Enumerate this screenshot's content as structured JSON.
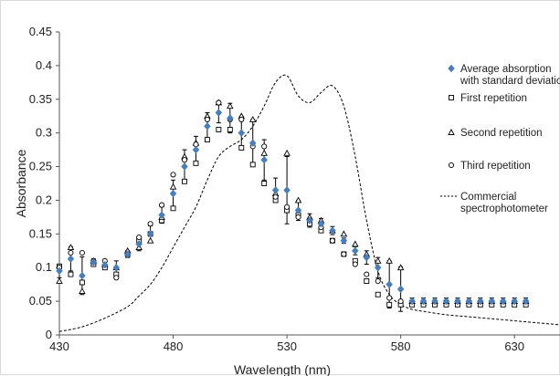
{
  "chart_data": {
    "type": "scatter",
    "title": "",
    "xlabel": "Wavelength (nm)",
    "ylabel": "Absorbance",
    "xlim": [
      430,
      650
    ],
    "ylim": [
      0,
      0.45
    ],
    "x_ticks": [
      430,
      480,
      530,
      580,
      630
    ],
    "y_ticks": [
      0,
      0.05,
      0.1,
      0.15,
      0.2,
      0.25,
      0.3,
      0.35,
      0.4,
      0.45
    ],
    "x_tick_labels": [
      "430",
      "480",
      "530",
      "580",
      "630"
    ],
    "y_tick_labels": [
      "0",
      "0.05",
      "0.1",
      "0.15",
      "0.2",
      "0.25",
      "0.3",
      "0.35",
      "0.4",
      "0.45"
    ],
    "grid": false,
    "legend_position": "right",
    "legend": [
      {
        "label": "Average absorption with standard deviation",
        "marker": "diamond-filled"
      },
      {
        "label": "First repetition",
        "marker": "square-open"
      },
      {
        "label": "Second repetition",
        "marker": "triangle-open"
      },
      {
        "label": "Third repetition",
        "marker": "circle-open"
      },
      {
        "label": "Commercial spectrophotometer",
        "marker": "dashed-line"
      }
    ],
    "colors": {
      "average": "#4a7ebb",
      "markers": "#000000",
      "line": "#000000"
    },
    "series": [
      {
        "name": "Average absorption with standard deviation",
        "marker": "diamond",
        "x": [
          430,
          435,
          440,
          445,
          450,
          455,
          460,
          465,
          470,
          475,
          480,
          485,
          490,
          495,
          500,
          505,
          510,
          515,
          520,
          525,
          530,
          535,
          540,
          545,
          550,
          555,
          560,
          565,
          570,
          575,
          580,
          585,
          590,
          595,
          600,
          605,
          610,
          615,
          620,
          625,
          630,
          635
        ],
        "y": [
          0.095,
          0.113,
          0.088,
          0.108,
          0.104,
          0.1,
          0.12,
          0.135,
          0.15,
          0.178,
          0.21,
          0.25,
          0.275,
          0.31,
          0.33,
          0.322,
          0.3,
          0.285,
          0.26,
          0.215,
          0.215,
          0.185,
          0.17,
          0.165,
          0.155,
          0.14,
          0.125,
          0.115,
          0.1,
          0.075,
          0.068,
          0.05,
          0.05,
          0.05,
          0.05,
          0.05,
          0.05,
          0.05,
          0.05,
          0.05,
          0.05,
          0.05
        ],
        "error": [
          0.01,
          0.018,
          0.028,
          0.005,
          0.007,
          0.01,
          0.005,
          0.01,
          0.012,
          0.012,
          0.02,
          0.025,
          0.02,
          0.02,
          0.015,
          0.022,
          0.025,
          0.035,
          0.03,
          0.018,
          0.05,
          0.015,
          0.01,
          0.008,
          0.006,
          0.004,
          0.006,
          0.01,
          0.015,
          0.035,
          0.033,
          0.005,
          0.005,
          0.005,
          0.005,
          0.005,
          0.005,
          0.005,
          0.005,
          0.005,
          0.005,
          0.005
        ]
      },
      {
        "name": "First repetition",
        "marker": "square",
        "x": [
          430,
          435,
          440,
          445,
          450,
          455,
          460,
          465,
          470,
          475,
          480,
          485,
          490,
          495,
          500,
          505,
          510,
          515,
          520,
          525,
          530,
          535,
          540,
          545,
          550,
          555,
          560,
          565,
          570,
          575,
          580,
          585,
          590,
          595,
          600,
          605,
          610,
          615,
          620,
          625,
          630,
          635
        ],
        "y": [
          0.102,
          0.09,
          0.078,
          0.105,
          0.1,
          0.09,
          0.12,
          0.14,
          0.15,
          0.17,
          0.188,
          0.228,
          0.255,
          0.29,
          0.305,
          0.305,
          0.278,
          0.253,
          0.225,
          0.2,
          0.185,
          0.178,
          0.165,
          0.155,
          0.14,
          0.12,
          0.11,
          0.08,
          0.06,
          0.045,
          0.045,
          0.045,
          0.045,
          0.045,
          0.045,
          0.045,
          0.045,
          0.045,
          0.045,
          0.045,
          0.045,
          0.045
        ]
      },
      {
        "name": "Second repetition",
        "marker": "triangle",
        "x": [
          430,
          435,
          440,
          445,
          450,
          455,
          460,
          465,
          470,
          475,
          480,
          485,
          490,
          495,
          500,
          505,
          510,
          515,
          520,
          525,
          530,
          535,
          540,
          545,
          550,
          555,
          560,
          565,
          570,
          575,
          580,
          585,
          590,
          595,
          600,
          605,
          610,
          615,
          620,
          625,
          630,
          635
        ],
        "y": [
          0.08,
          0.13,
          0.065,
          0.11,
          0.105,
          0.1,
          0.125,
          0.13,
          0.14,
          0.175,
          0.22,
          0.265,
          0.285,
          0.325,
          0.345,
          0.34,
          0.325,
          0.32,
          0.27,
          0.21,
          0.27,
          0.2,
          0.175,
          0.17,
          0.155,
          0.15,
          0.135,
          0.12,
          0.11,
          0.11,
          0.1,
          0.05,
          0.05,
          0.05,
          0.05,
          0.05,
          0.05,
          0.05,
          0.05,
          0.05,
          0.05,
          0.05
        ]
      },
      {
        "name": "Third repetition",
        "marker": "circle",
        "x": [
          430,
          435,
          440,
          445,
          450,
          455,
          460,
          465,
          470,
          475,
          480,
          485,
          490,
          495,
          500,
          505,
          510,
          515,
          520,
          525,
          530,
          535,
          540,
          545,
          550,
          555,
          560,
          565,
          570,
          575,
          580,
          585,
          590,
          595,
          600,
          605,
          610,
          615,
          620,
          625,
          630,
          635
        ],
        "y": [
          0.1,
          0.122,
          0.122,
          0.11,
          0.11,
          0.085,
          0.12,
          0.145,
          0.165,
          0.193,
          0.238,
          0.26,
          0.283,
          0.32,
          0.345,
          0.32,
          0.32,
          0.28,
          0.28,
          0.205,
          0.19,
          0.175,
          0.17,
          0.16,
          0.14,
          0.12,
          0.105,
          0.09,
          0.08,
          0.055,
          0.05,
          0.05,
          0.05,
          0.05,
          0.05,
          0.05,
          0.05,
          0.05,
          0.05,
          0.05,
          0.05,
          0.05
        ]
      },
      {
        "name": "Commercial spectrophotometer",
        "marker": "dashed-line",
        "x": [
          430,
          440,
          450,
          460,
          465,
          470,
          475,
          480,
          485,
          490,
          495,
          500,
          505,
          510,
          515,
          520,
          525,
          530,
          535,
          540,
          545,
          550,
          555,
          560,
          565,
          570,
          575,
          580,
          585,
          590,
          600,
          610,
          620,
          630,
          640,
          650
        ],
        "y": [
          0.005,
          0.012,
          0.025,
          0.042,
          0.058,
          0.075,
          0.1,
          0.13,
          0.16,
          0.19,
          0.23,
          0.265,
          0.28,
          0.29,
          0.31,
          0.34,
          0.375,
          0.385,
          0.355,
          0.345,
          0.36,
          0.37,
          0.34,
          0.265,
          0.17,
          0.095,
          0.06,
          0.045,
          0.038,
          0.035,
          0.03,
          0.027,
          0.024,
          0.021,
          0.018,
          0.015
        ]
      }
    ]
  }
}
